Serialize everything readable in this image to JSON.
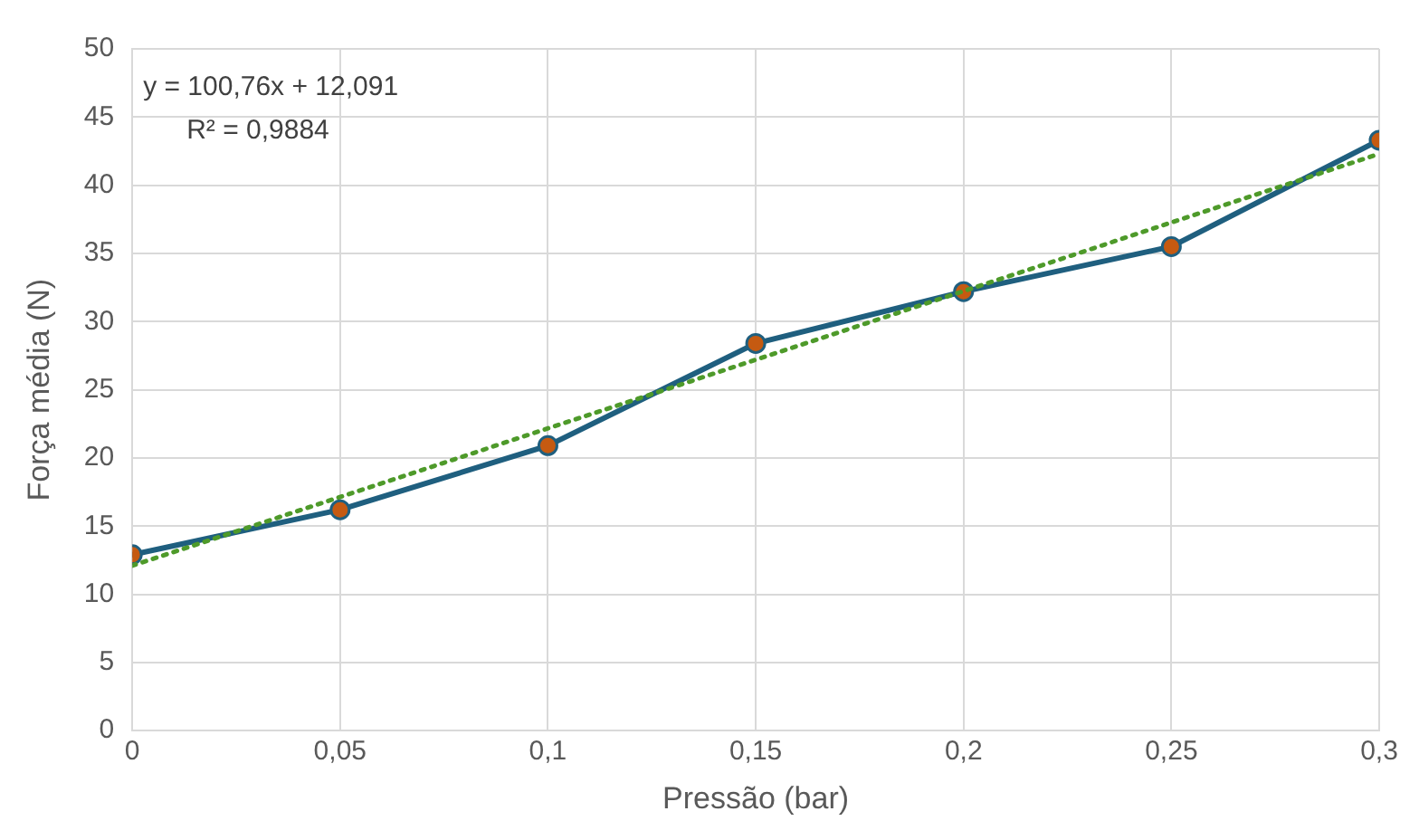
{
  "chart_data": {
    "type": "line",
    "xlabel": "Pressão (bar)",
    "ylabel": "Força média (N)",
    "x": [
      0,
      0.05,
      0.1,
      0.15,
      0.2,
      0.25,
      0.3
    ],
    "series": [
      {
        "color": "#1f5f7f",
        "colors": [
          "#c55a11",
          "#c55a11",
          "#c55a11",
          "#c55a11",
          "#c55a11",
          "#c55a11",
          "#c55a11"
        ],
        "values": [
          12.9,
          16.2,
          20.9,
          28.4,
          32.2,
          35.5,
          43.3
        ],
        "marker": "circle",
        "line_style": "solid"
      },
      {
        "type": "line",
        "x": [
          0,
          0.3
        ],
        "values": [
          12.1,
          42.3
        ],
        "color": "#4e9a2a",
        "marker": "none",
        "line_style": "dotted"
      }
    ],
    "xlim": [
      0,
      0.3
    ],
    "xticks": [
      0,
      {
        "value": 0.05,
        "label": "0,05"
      },
      {
        "value": 0.1,
        "label": "0,1"
      },
      {
        "value": 0.15,
        "label": "0,15"
      },
      {
        "value": 0.2,
        "label": "0,2"
      },
      {
        "value": 0.25,
        "label": "0,25"
      },
      {
        "value": 0.3,
        "label": "0,3"
      }
    ],
    "ylim": [
      0,
      50
    ],
    "yticks": [
      0,
      5,
      10,
      15,
      20,
      25,
      30,
      35,
      40,
      45,
      50
    ],
    "grid": true,
    "legend": false,
    "annotations": [
      "y = 100,76x + 12,091",
      "R² = 0,9884"
    ]
  }
}
